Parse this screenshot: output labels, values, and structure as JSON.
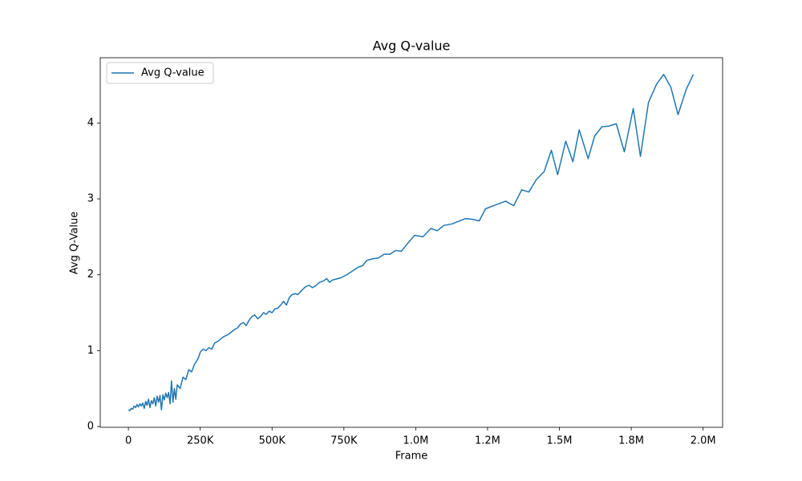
{
  "chart_data": {
    "type": "line",
    "title": "Avg Q-value",
    "x_label": "Frame",
    "y_label": "Avg Q-Value",
    "x": [
      0,
      5000,
      10000,
      15000,
      20000,
      25000,
      30000,
      35000,
      40000,
      45000,
      50000,
      55000,
      60000,
      65000,
      70000,
      75000,
      80000,
      85000,
      90000,
      95000,
      100000,
      105000,
      110000,
      115000,
      120000,
      125000,
      130000,
      135000,
      140000,
      145000,
      150000,
      155000,
      160000,
      165000,
      170000,
      180000,
      190000,
      200000,
      210000,
      220000,
      230000,
      235000,
      240000,
      245000,
      250000,
      260000,
      270000,
      280000,
      290000,
      300000,
      310000,
      320000,
      330000,
      340000,
      350000,
      360000,
      370000,
      380000,
      390000,
      400000,
      410000,
      420000,
      430000,
      440000,
      450000,
      460000,
      470000,
      480000,
      490000,
      500000,
      510000,
      520000,
      530000,
      540000,
      550000,
      560000,
      570000,
      580000,
      590000,
      600000,
      610000,
      620000,
      630000,
      640000,
      650000,
      665000,
      680000,
      690000,
      700000,
      710000,
      720000,
      740000,
      760000,
      780000,
      800000,
      815000,
      830000,
      850000,
      870000,
      890000,
      910000,
      930000,
      950000,
      965000,
      980000,
      997000,
      1025000,
      1053000,
      1075000,
      1098000,
      1126000,
      1173000,
      1198000,
      1221000,
      1243000,
      1285000,
      1313000,
      1341000,
      1369000,
      1394000,
      1419000,
      1447000,
      1472000,
      1494000,
      1522000,
      1547000,
      1569000,
      1600000,
      1623000,
      1648000,
      1673000,
      1698000,
      1726000,
      1757000,
      1782000,
      1810000,
      1838000,
      1863000,
      1888000,
      1913000,
      1941000,
      1966000
    ],
    "series": [
      {
        "name": "Avg Q-value",
        "color": "#1f77b4",
        "values": [
          0.22,
          0.21,
          0.24,
          0.23,
          0.27,
          0.25,
          0.29,
          0.26,
          0.3,
          0.27,
          0.31,
          0.24,
          0.33,
          0.28,
          0.36,
          0.25,
          0.34,
          0.3,
          0.38,
          0.27,
          0.4,
          0.32,
          0.41,
          0.22,
          0.42,
          0.35,
          0.44,
          0.38,
          0.45,
          0.3,
          0.6,
          0.32,
          0.5,
          0.36,
          0.55,
          0.5,
          0.65,
          0.62,
          0.75,
          0.72,
          0.82,
          0.85,
          0.88,
          0.92,
          0.98,
          1.02,
          1.0,
          1.04,
          1.02,
          1.1,
          1.12,
          1.15,
          1.18,
          1.2,
          1.22,
          1.25,
          1.28,
          1.3,
          1.35,
          1.37,
          1.33,
          1.4,
          1.45,
          1.47,
          1.42,
          1.45,
          1.5,
          1.48,
          1.52,
          1.5,
          1.55,
          1.56,
          1.6,
          1.65,
          1.6,
          1.7,
          1.74,
          1.75,
          1.74,
          1.78,
          1.82,
          1.85,
          1.86,
          1.83,
          1.85,
          1.9,
          1.92,
          1.95,
          1.9,
          1.93,
          1.94,
          1.96,
          2.0,
          2.05,
          2.1,
          2.12,
          2.19,
          2.21,
          2.22,
          2.27,
          2.27,
          2.32,
          2.31,
          2.38,
          2.45,
          2.52,
          2.5,
          2.61,
          2.58,
          2.65,
          2.67,
          2.74,
          2.73,
          2.71,
          2.87,
          2.93,
          2.97,
          2.91,
          3.12,
          3.09,
          3.25,
          3.36,
          3.64,
          3.32,
          3.76,
          3.49,
          3.91,
          3.53,
          3.83,
          3.95,
          3.96,
          3.99,
          3.62,
          4.19,
          3.56,
          4.27,
          4.51,
          4.64,
          4.47,
          4.11,
          4.44,
          4.64
        ]
      }
    ],
    "xlim": [
      -98000,
      2068000
    ],
    "ylim": [
      -0.01,
      4.86
    ],
    "xticks": [
      0,
      {
        "value": 250000,
        "label": "250K"
      },
      {
        "value": 500000,
        "label": "500K"
      },
      {
        "value": 750000,
        "label": "750K"
      },
      {
        "value": 1000000,
        "label": "1.0M"
      },
      {
        "value": 1250000,
        "label": "1.2M"
      },
      {
        "value": 1500000,
        "label": "1.5M"
      },
      {
        "value": 1750000,
        "label": "1.8M"
      },
      {
        "value": 2000000,
        "label": "2.0M"
      }
    ],
    "yticks": [
      0,
      1,
      2,
      3,
      4
    ],
    "legend": "upper left",
    "grid": false
  }
}
